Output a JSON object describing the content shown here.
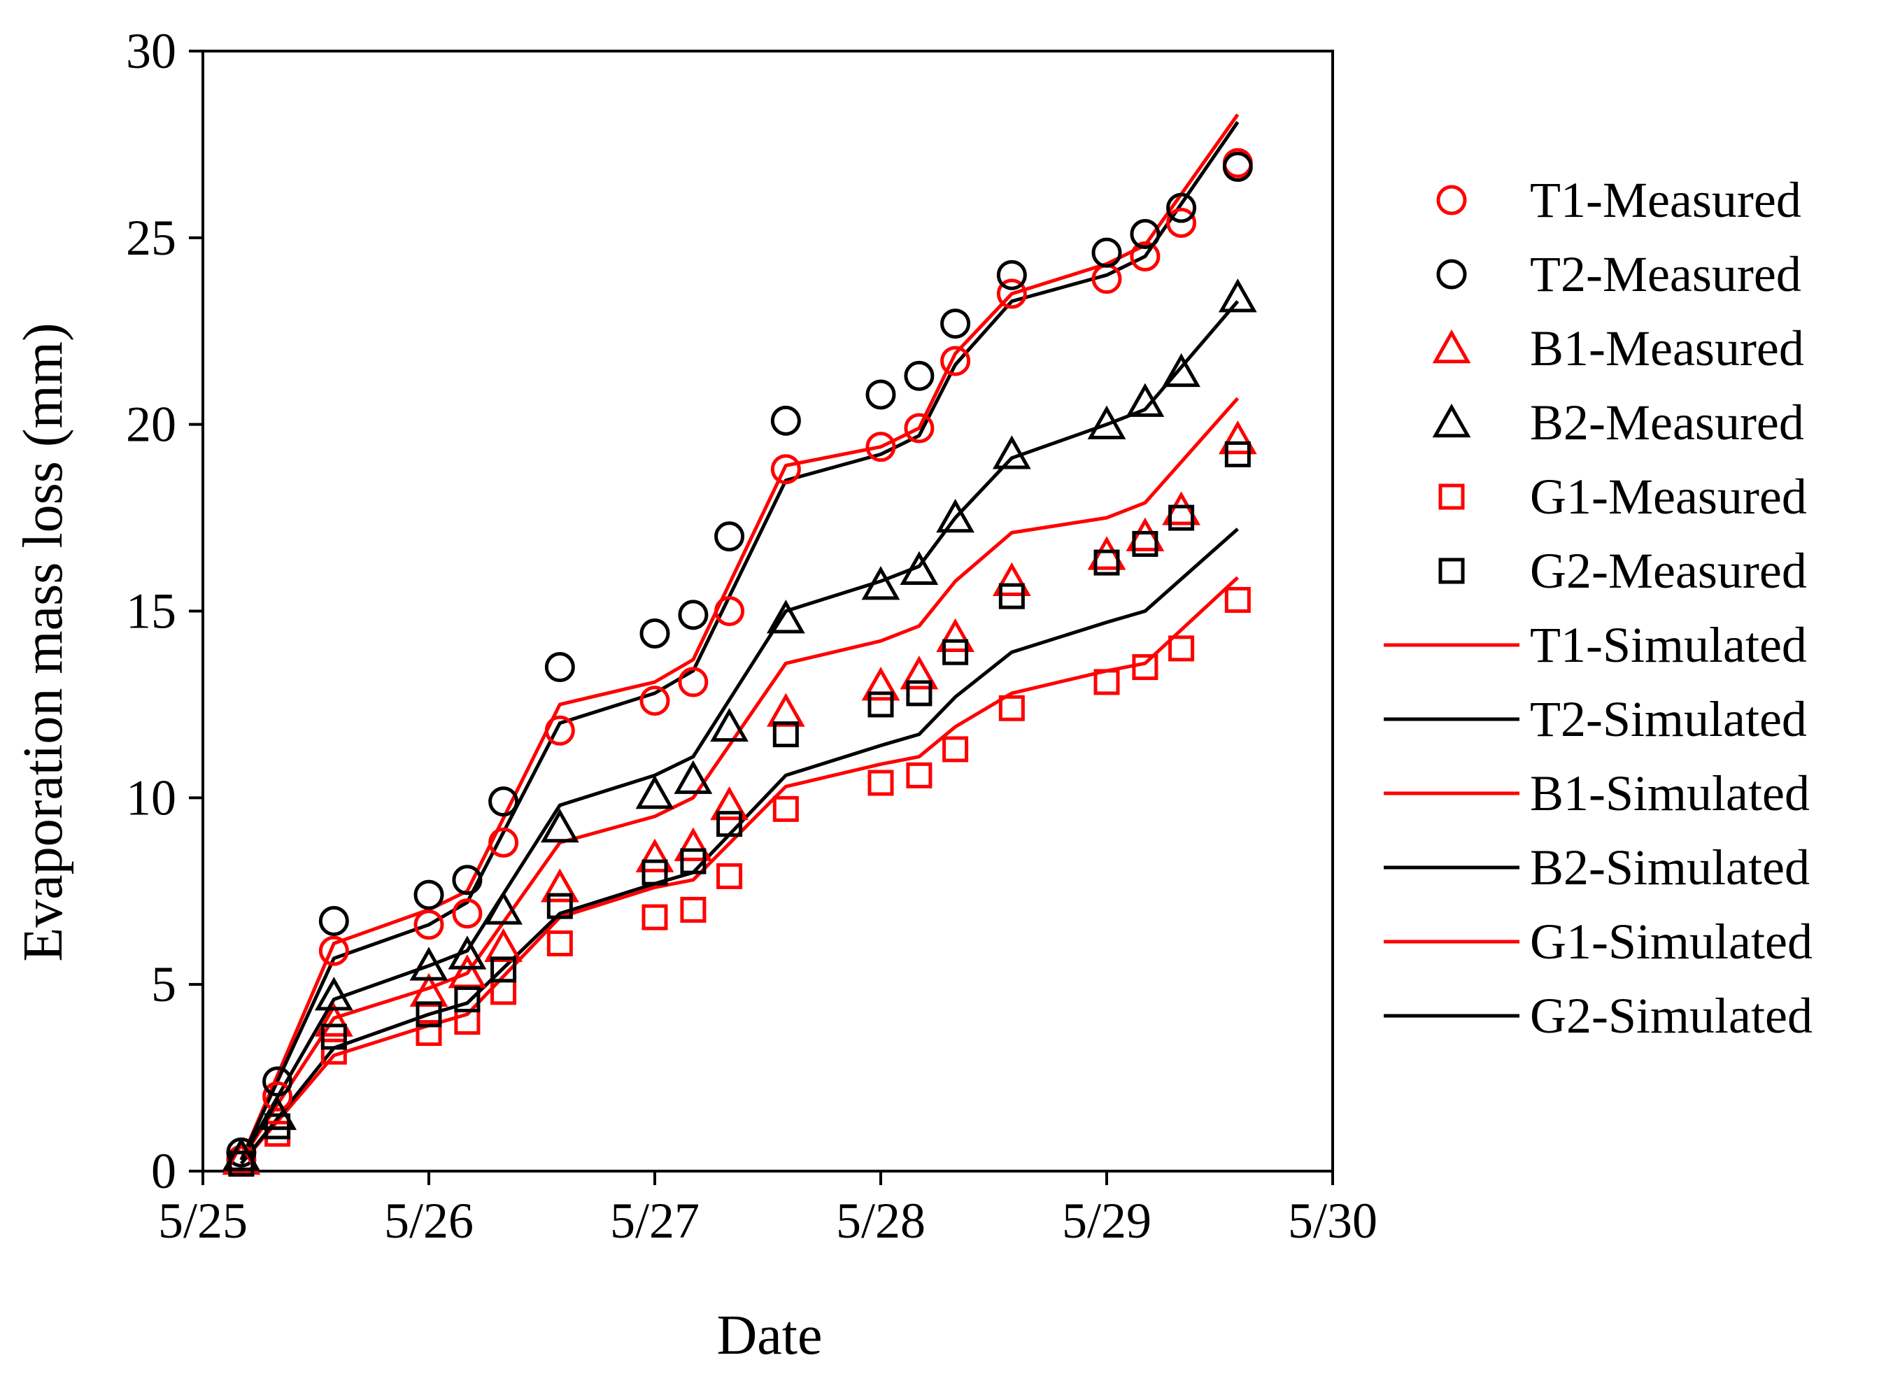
{
  "chart_data": {
    "type": "line",
    "title": "",
    "xlabel": "Date",
    "ylabel": "Evaporation mass loss (mm)",
    "x_unit": "days since 5/25",
    "xlim": [
      0,
      5
    ],
    "ylim": [
      0,
      30
    ],
    "x_ticks": [
      {
        "value": 0,
        "label": "5/25"
      },
      {
        "value": 1,
        "label": "5/26"
      },
      {
        "value": 2,
        "label": "5/27"
      },
      {
        "value": 3,
        "label": "5/28"
      },
      {
        "value": 4,
        "label": "5/29"
      },
      {
        "value": 5,
        "label": "5/30"
      }
    ],
    "y_ticks": [
      {
        "value": 0,
        "label": "0"
      },
      {
        "value": 5,
        "label": "5"
      },
      {
        "value": 10,
        "label": "10"
      },
      {
        "value": 15,
        "label": "15"
      },
      {
        "value": 20,
        "label": "20"
      },
      {
        "value": 25,
        "label": "25"
      },
      {
        "value": 30,
        "label": "30"
      }
    ],
    "grid": false,
    "legend_position": "right",
    "series": [
      {
        "name": "T1-Measured",
        "kind": "marker",
        "marker": "circle",
        "color": "#ff0000",
        "x": [
          0.17,
          0.33,
          0.58,
          1.0,
          1.17,
          1.33,
          1.58,
          2.0,
          2.17,
          2.33,
          2.58,
          3.0,
          3.17,
          3.33,
          3.58,
          4.0,
          4.17,
          4.33,
          4.58
        ],
        "y": [
          0.3,
          2.0,
          5.9,
          6.6,
          6.9,
          8.8,
          11.8,
          12.6,
          13.1,
          15.0,
          18.8,
          19.4,
          19.9,
          21.7,
          23.5,
          23.9,
          24.5,
          25.4,
          27.0
        ]
      },
      {
        "name": "T2-Measured",
        "kind": "marker",
        "marker": "circle",
        "color": "#000000",
        "x": [
          0.17,
          0.33,
          0.58,
          1.0,
          1.17,
          1.33,
          1.58,
          2.0,
          2.17,
          2.33,
          2.58,
          3.0,
          3.17,
          3.33,
          3.58,
          4.0,
          4.17,
          4.33,
          4.58
        ],
        "y": [
          0.5,
          2.4,
          6.7,
          7.4,
          7.8,
          9.9,
          13.5,
          14.4,
          14.9,
          17.0,
          20.1,
          20.8,
          21.3,
          22.7,
          24.0,
          24.6,
          25.1,
          25.8,
          26.9
        ]
      },
      {
        "name": "B1-Measured",
        "kind": "marker",
        "marker": "triangle",
        "color": "#ff0000",
        "x": [
          0.17,
          0.33,
          0.58,
          1.0,
          1.17,
          1.33,
          1.58,
          2.0,
          2.17,
          2.33,
          2.58,
          3.0,
          3.17,
          3.33,
          3.58,
          4.0,
          4.17,
          4.33,
          4.58
        ],
        "y": [
          0.3,
          1.5,
          4.0,
          4.8,
          5.3,
          6.0,
          7.6,
          8.4,
          8.7,
          9.8,
          12.3,
          13.0,
          13.3,
          14.3,
          15.8,
          16.5,
          17.0,
          17.7,
          19.6
        ]
      },
      {
        "name": "B2-Measured",
        "kind": "marker",
        "marker": "triangle",
        "color": "#000000",
        "x": [
          0.17,
          0.33,
          0.58,
          1.0,
          1.17,
          1.33,
          1.58,
          2.0,
          2.17,
          2.33,
          2.58,
          3.0,
          3.17,
          3.33,
          3.58,
          4.0,
          4.17,
          4.33,
          4.58
        ],
        "y": [
          0.4,
          1.5,
          4.7,
          5.5,
          5.8,
          7.0,
          9.2,
          10.1,
          10.5,
          11.9,
          14.8,
          15.7,
          16.1,
          17.5,
          19.2,
          20.0,
          20.6,
          21.4,
          23.4
        ]
      },
      {
        "name": "G1-Measured",
        "kind": "marker",
        "marker": "square",
        "color": "#ff0000",
        "x": [
          0.17,
          0.33,
          0.58,
          1.0,
          1.17,
          1.33,
          1.58,
          2.0,
          2.17,
          2.33,
          2.58,
          3.0,
          3.17,
          3.33,
          3.58,
          4.0,
          4.17,
          4.33,
          4.58
        ],
        "y": [
          0.2,
          1.0,
          3.2,
          3.7,
          4.0,
          4.8,
          6.1,
          6.8,
          7.0,
          7.9,
          9.7,
          10.4,
          10.6,
          11.3,
          12.4,
          13.1,
          13.5,
          14.0,
          15.3
        ]
      },
      {
        "name": "G2-Measured",
        "kind": "marker",
        "marker": "square",
        "color": "#000000",
        "x": [
          0.17,
          0.33,
          0.58,
          1.0,
          1.17,
          1.33,
          1.58,
          2.0,
          2.17,
          2.33,
          2.58,
          3.0,
          3.17,
          3.33,
          3.58,
          4.0,
          4.17,
          4.33,
          4.58
        ],
        "y": [
          0.2,
          1.2,
          3.6,
          4.2,
          4.6,
          5.4,
          7.1,
          8.0,
          8.3,
          9.3,
          11.7,
          12.5,
          12.8,
          13.9,
          15.4,
          16.3,
          16.8,
          17.5,
          19.2
        ]
      },
      {
        "name": "T1-Simulated",
        "kind": "line",
        "color": "#ff0000",
        "x": [
          0.17,
          0.58,
          1.0,
          1.17,
          1.58,
          2.0,
          2.17,
          2.58,
          3.0,
          3.17,
          3.33,
          3.58,
          4.0,
          4.17,
          4.58
        ],
        "y": [
          0.3,
          6.1,
          7.0,
          7.5,
          12.5,
          13.1,
          13.7,
          18.9,
          19.4,
          19.9,
          21.9,
          23.5,
          24.3,
          24.8,
          28.3
        ]
      },
      {
        "name": "T2-Simulated",
        "kind": "line",
        "color": "#000000",
        "x": [
          0.17,
          0.58,
          1.0,
          1.17,
          1.58,
          2.0,
          2.17,
          2.58,
          3.0,
          3.17,
          3.33,
          3.58,
          4.0,
          4.17,
          4.58
        ],
        "y": [
          0.3,
          5.7,
          6.6,
          7.2,
          12.0,
          12.8,
          13.4,
          18.5,
          19.2,
          19.7,
          21.6,
          23.3,
          24.0,
          24.5,
          28.1
        ]
      },
      {
        "name": "B1-Simulated",
        "kind": "line",
        "color": "#ff0000",
        "x": [
          0.17,
          0.58,
          1.0,
          1.17,
          1.58,
          2.0,
          2.17,
          2.58,
          3.0,
          3.17,
          3.33,
          3.58,
          4.0,
          4.17,
          4.58
        ],
        "y": [
          0.3,
          4.1,
          4.9,
          5.3,
          8.8,
          9.5,
          10.0,
          13.6,
          14.2,
          14.6,
          15.8,
          17.1,
          17.5,
          17.9,
          20.7
        ]
      },
      {
        "name": "B2-Simulated",
        "kind": "line",
        "color": "#000000",
        "x": [
          0.17,
          0.58,
          1.0,
          1.17,
          1.58,
          2.0,
          2.17,
          2.58,
          3.0,
          3.17,
          3.33,
          3.58,
          4.0,
          4.17,
          4.58
        ],
        "y": [
          0.3,
          4.6,
          5.5,
          5.9,
          9.8,
          10.6,
          11.1,
          15.0,
          15.8,
          16.2,
          17.5,
          19.1,
          20.0,
          20.4,
          23.3
        ]
      },
      {
        "name": "G1-Simulated",
        "kind": "line",
        "color": "#ff0000",
        "x": [
          0.17,
          0.58,
          1.0,
          1.17,
          1.58,
          2.0,
          2.17,
          2.58,
          3.0,
          3.17,
          3.33,
          3.58,
          4.0,
          4.17,
          4.58
        ],
        "y": [
          0.2,
          3.1,
          3.9,
          4.2,
          6.8,
          7.6,
          7.8,
          10.3,
          10.9,
          11.1,
          11.9,
          12.8,
          13.4,
          13.6,
          15.9
        ]
      },
      {
        "name": "G2-Simulated",
        "kind": "line",
        "color": "#000000",
        "x": [
          0.17,
          0.58,
          1.0,
          1.17,
          1.58,
          2.0,
          2.17,
          2.58,
          3.0,
          3.17,
          3.33,
          3.58,
          4.0,
          4.17,
          4.58
        ],
        "y": [
          0.2,
          3.3,
          4.2,
          4.5,
          6.9,
          7.7,
          8.0,
          10.6,
          11.4,
          11.7,
          12.7,
          13.9,
          14.7,
          15.0,
          17.2
        ]
      }
    ]
  }
}
